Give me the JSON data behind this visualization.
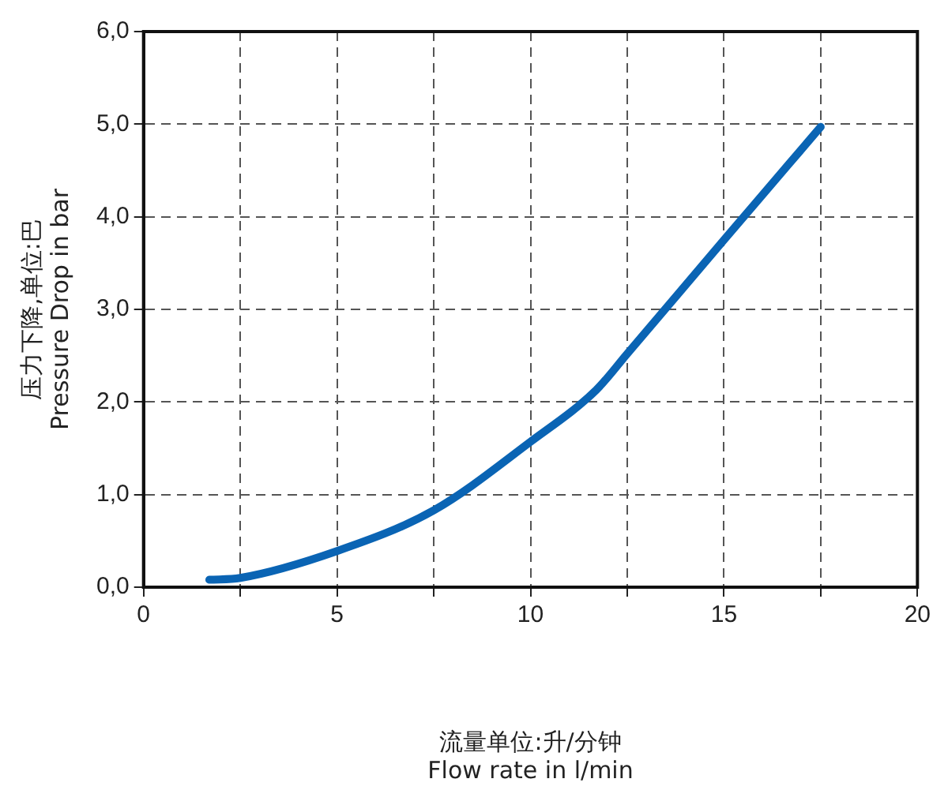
{
  "chart_data": {
    "type": "line",
    "xlabel": "流量单位:升/分钟\nFlow rate in l/min",
    "ylabel": "压力下降,单位:巴\nPressure Drop in bar",
    "x": [
      1.7,
      2.5,
      5,
      7.5,
      10,
      11.7,
      12.5,
      15,
      17.5
    ],
    "series": [
      {
        "color": "#0a64b4",
        "values": [
          0.08,
          0.1,
          0.39,
          0.83,
          1.57,
          2.13,
          2.52,
          3.75,
          4.97
        ]
      }
    ],
    "xlim": [
      0,
      20
    ],
    "ylim": [
      0,
      6
    ],
    "xticks": [
      0,
      {
        "value": 2.5,
        "label": null
      },
      5,
      {
        "value": 7.5,
        "label": null
      },
      10,
      {
        "value": 12.5,
        "label": null
      },
      15,
      {
        "value": 17.5,
        "label": null
      },
      20
    ],
    "yticks": [
      {
        "value": 0,
        "label": "0,0"
      },
      {
        "value": 1,
        "label": "1,0"
      },
      {
        "value": 2,
        "label": "2,0"
      },
      {
        "value": 3,
        "label": "3,0"
      },
      {
        "value": 4,
        "label": "4,0"
      },
      {
        "value": 5,
        "label": "5,0"
      },
      {
        "value": 6,
        "label": "6,0"
      }
    ],
    "grid": true,
    "legend": false,
    "marker": "none",
    "line_style": "solid"
  }
}
